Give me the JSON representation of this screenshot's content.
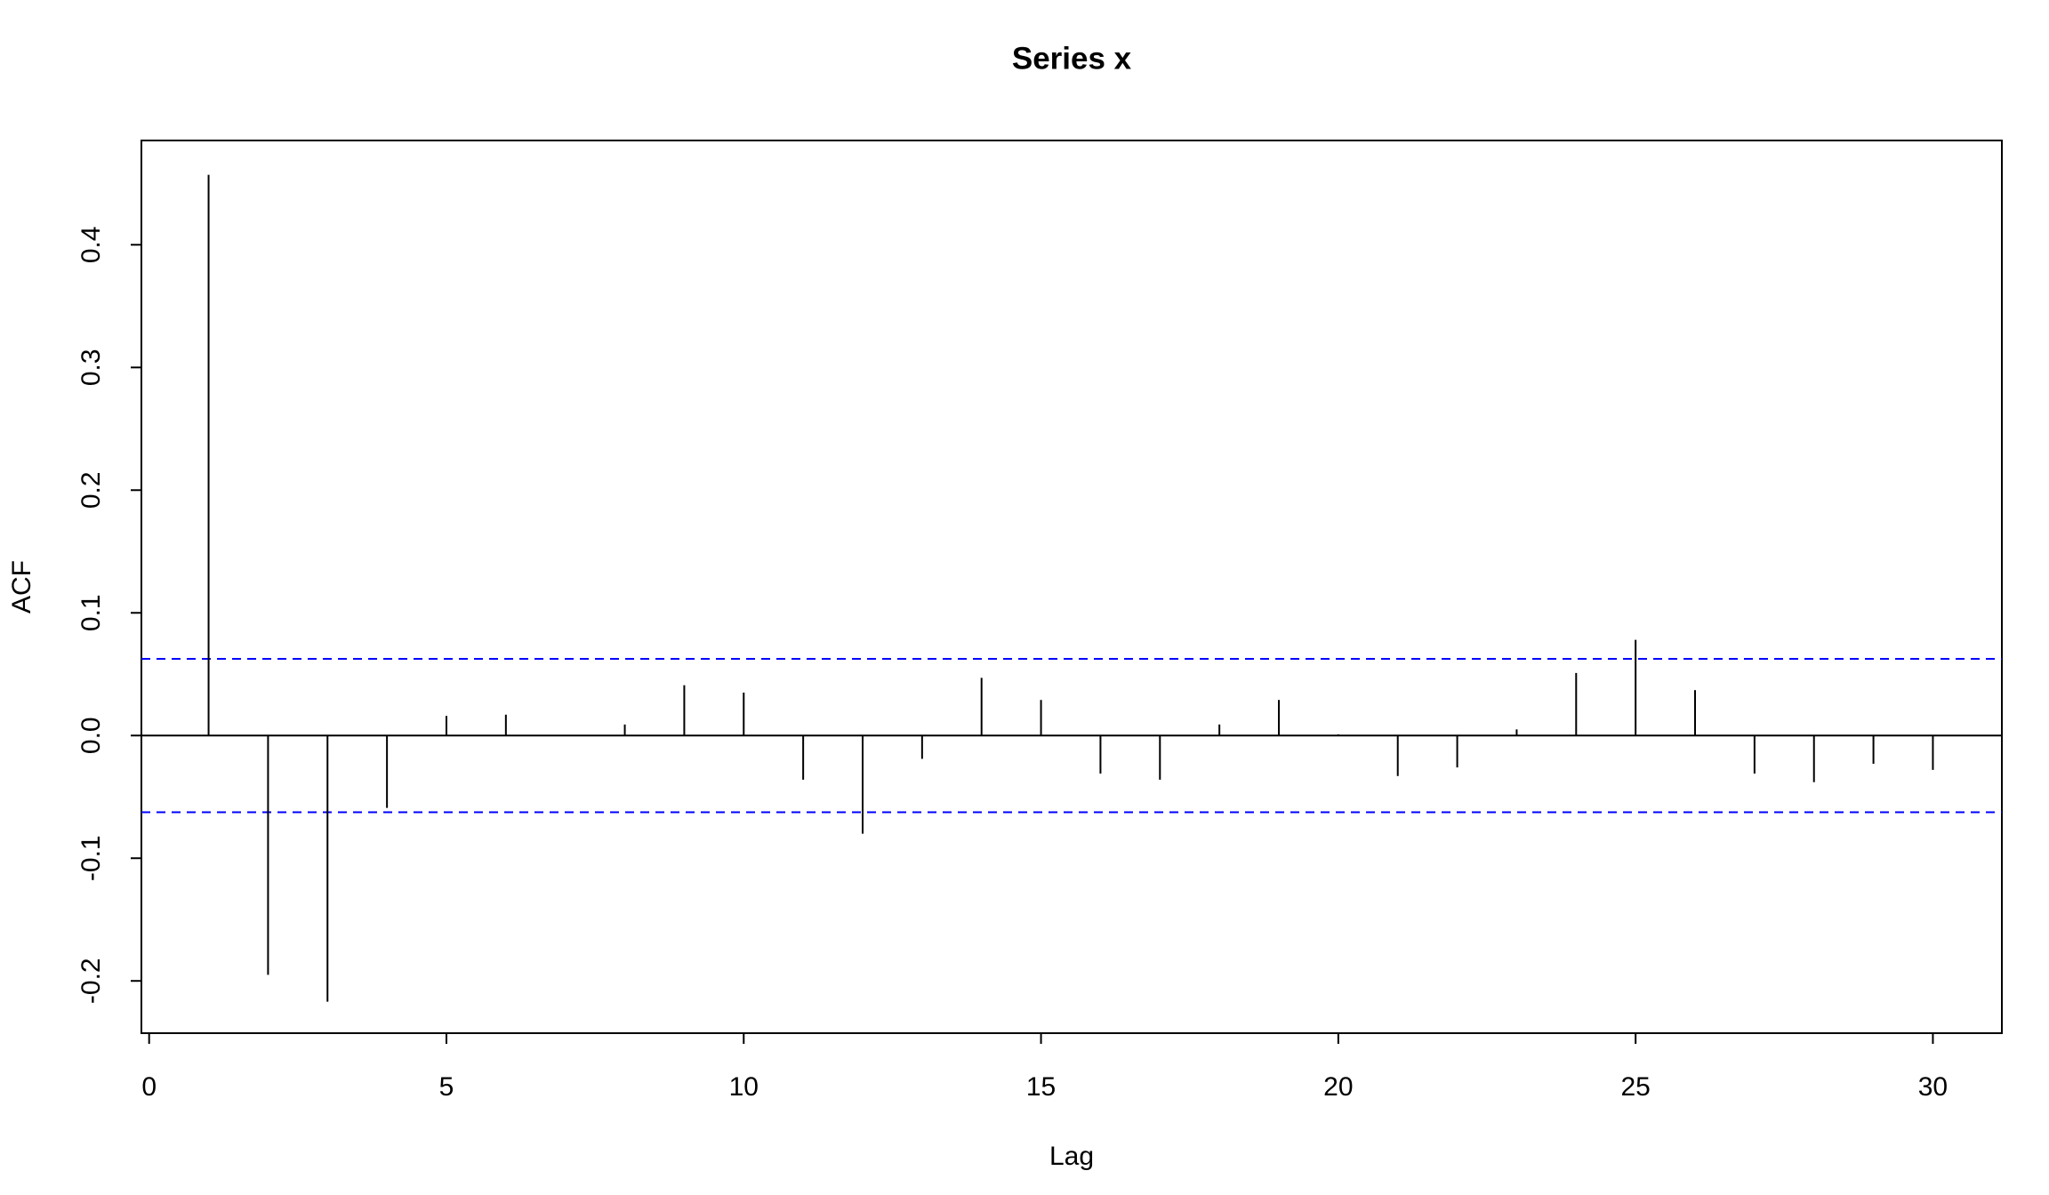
{
  "chart_data": {
    "type": "acf",
    "title": "Series  x",
    "x_label": "Lag",
    "y_label": "ACF",
    "x": [
      1,
      2,
      3,
      4,
      5,
      6,
      7,
      8,
      9,
      10,
      11,
      12,
      13,
      14,
      15,
      16,
      17,
      18,
      19,
      20,
      21,
      22,
      23,
      24,
      25,
      26,
      27,
      28,
      29,
      30
    ],
    "values": [
      0.457,
      -0.195,
      -0.217,
      -0.059,
      0.016,
      0.017,
      0.0,
      0.009,
      0.041,
      0.035,
      -0.036,
      -0.08,
      -0.019,
      0.047,
      0.029,
      -0.031,
      -0.036,
      0.009,
      0.029,
      0.001,
      -0.033,
      -0.026,
      0.005,
      0.051,
      0.078,
      0.037,
      -0.031,
      -0.038,
      -0.023,
      -0.028
    ],
    "color": "#000000",
    "bands": [
      0.0625,
      -0.0625
    ],
    "band_color": "#0000ff",
    "xlim": [
      -0.13,
      31.16
    ],
    "ylim": [
      -0.2426,
      0.485
    ],
    "xticks": [
      0,
      5,
      10,
      15,
      20,
      25,
      30
    ],
    "yticks": [
      -0.2,
      -0.1,
      {
        "value": 0,
        "label": "0.0"
      },
      0.1,
      0.2,
      0.3,
      0.4
    ]
  }
}
